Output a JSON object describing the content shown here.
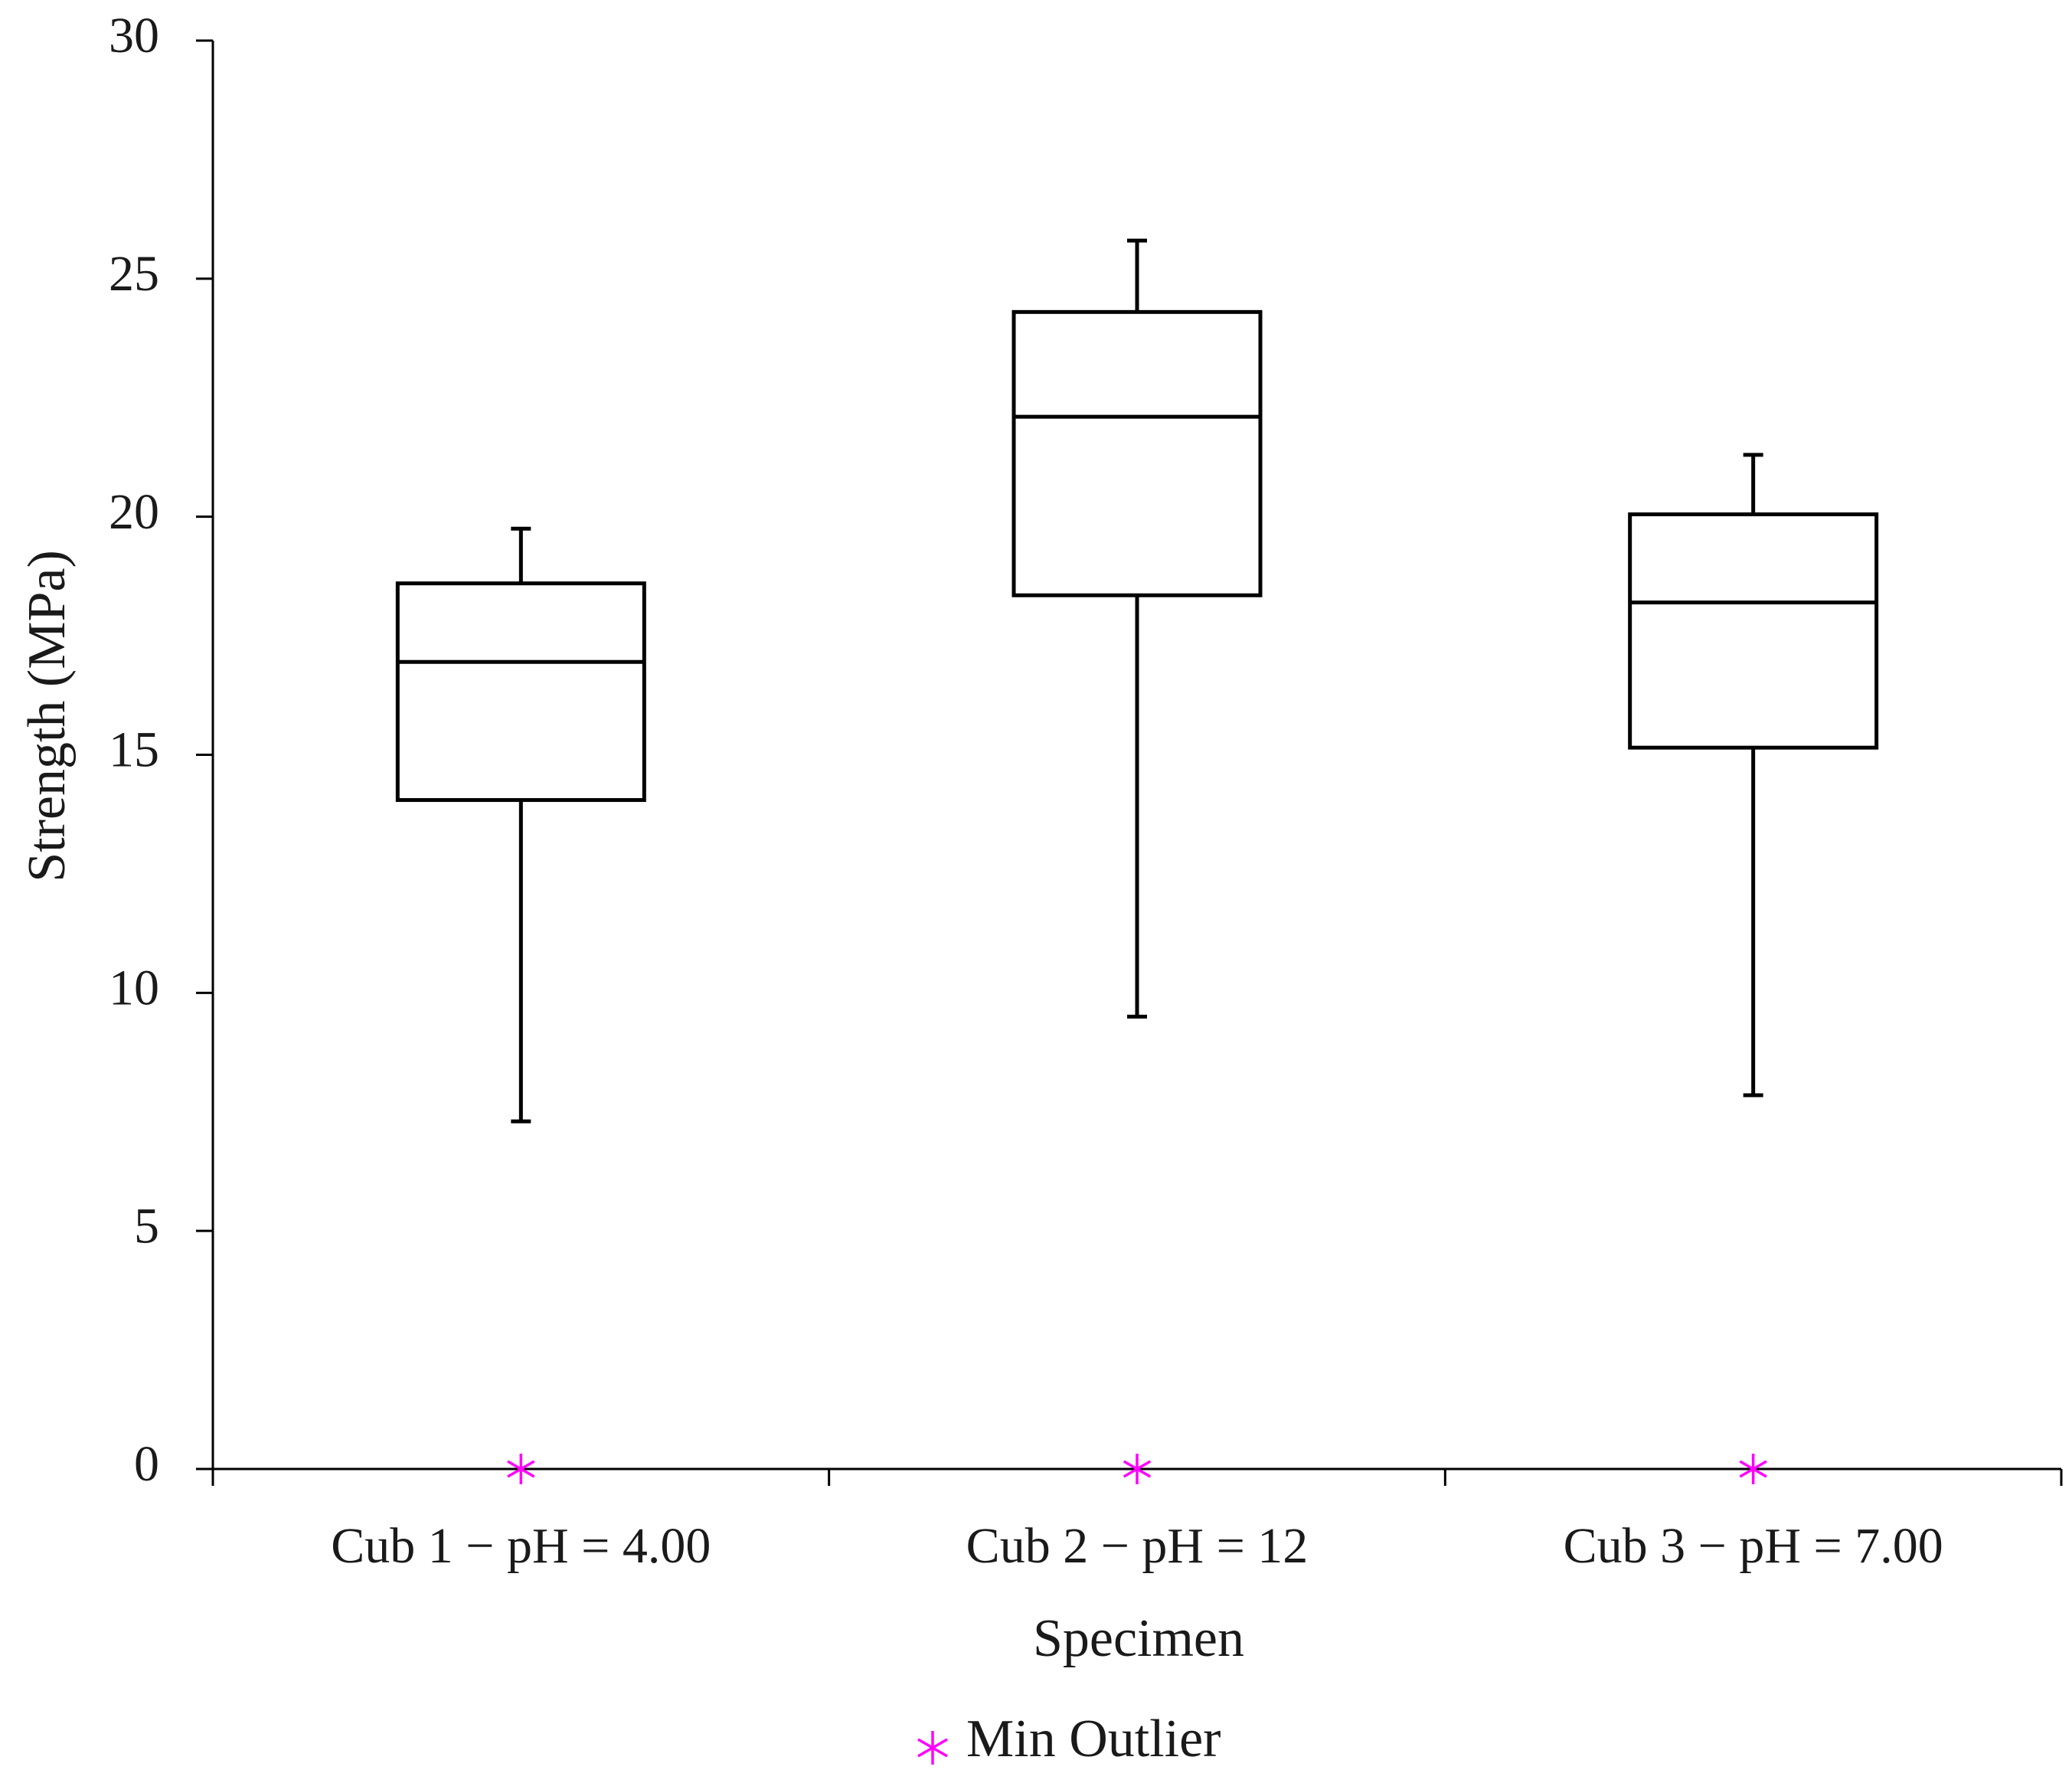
{
  "chart_data": {
    "type": "boxplot",
    "title": "",
    "xlabel": "Specimen",
    "ylabel": "Strength (MPa)",
    "ylim": [
      0,
      30
    ],
    "yticks": [
      0,
      5,
      10,
      15,
      20,
      25,
      30
    ],
    "categories": [
      "Cub 1 − pH = 4.00",
      "Cub 2 − pH = 12",
      "Cub 3 − pH = 7.00"
    ],
    "boxes": [
      {
        "min": 7.3,
        "q1": 14.05,
        "median": 16.95,
        "q3": 18.6,
        "max": 19.75,
        "min_outlier": 0
      },
      {
        "min": 9.5,
        "q1": 18.35,
        "median": 22.1,
        "q3": 24.3,
        "max": 25.8,
        "min_outlier": 0
      },
      {
        "min": 7.85,
        "q1": 15.15,
        "median": 18.2,
        "q3": 20.05,
        "max": 21.3,
        "min_outlier": 0
      }
    ],
    "legend": {
      "entries": [
        {
          "label": "Min Outlier",
          "marker": "asterisk",
          "color": "#ff00ff"
        }
      ],
      "position": "bottom"
    },
    "colors": {
      "box": "#000000",
      "outlier": "#ff00ff",
      "text": "#1a1a1a"
    }
  }
}
